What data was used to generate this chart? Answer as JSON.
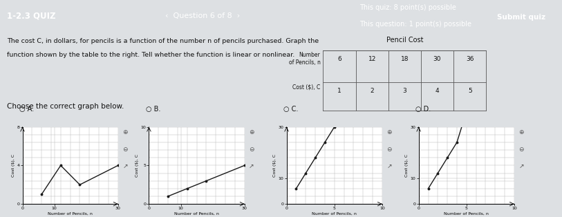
{
  "header_bg": "#7d1c2e",
  "body_bg": "#dde0e3",
  "white": "#ffffff",
  "dark_text": "#111111",
  "quiz_title": "1-2.3 QUIZ",
  "question_nav": "‹  Question 6 of 8  ›",
  "quiz_points": "This quiz: 8 point(s) possible",
  "question_points": "This question: 1 point(s) possible",
  "submit_btn": "Submit quiz",
  "body_text1": "The cost C, in dollars, for pencils is a function of the number n of pencils purchased. Graph the",
  "body_text2": "function shown by the table to the right. Tell whether the function is linear or nonlinear.",
  "choose_text": "Choose the correct graph below.",
  "table_title": "Pencil Cost",
  "table_n": [
    6,
    12,
    18,
    30,
    36
  ],
  "table_c": [
    1,
    2,
    3,
    4,
    5
  ],
  "graph_line_color": "#1a1a1a",
  "grid_color": "#bbbbbb",
  "graphs": [
    {
      "label": "A.",
      "xlim": [
        0,
        30
      ],
      "ylim": [
        0,
        8
      ],
      "xticks": [
        0,
        10,
        30
      ],
      "yticks": [
        0,
        4,
        8
      ],
      "xdata": [
        6,
        12,
        18,
        30
      ],
      "ydata": [
        1,
        4,
        2,
        4
      ]
    },
    {
      "label": "B.",
      "xlim": [
        0,
        30
      ],
      "ylim": [
        0,
        10
      ],
      "xticks": [
        0,
        10,
        30
      ],
      "yticks": [
        0,
        5,
        10
      ],
      "xdata": [
        6,
        12,
        18,
        30
      ],
      "ydata": [
        1,
        2,
        3,
        5
      ]
    },
    {
      "label": "C.",
      "xlim": [
        0,
        10
      ],
      "ylim": [
        0,
        30
      ],
      "xticks": [
        0,
        5,
        10
      ],
      "yticks": [
        0,
        10,
        30
      ],
      "xdata": [
        1,
        2,
        3,
        4,
        5
      ],
      "ydata": [
        6,
        12,
        18,
        24,
        30
      ]
    },
    {
      "label": "D.",
      "xlim": [
        0,
        10
      ],
      "ylim": [
        0,
        30
      ],
      "xticks": [
        0,
        5,
        10
      ],
      "yticks": [
        0,
        10,
        30
      ],
      "xdata": [
        1,
        2,
        3,
        4,
        5
      ],
      "ydata": [
        6,
        12,
        18,
        24,
        36
      ]
    }
  ]
}
